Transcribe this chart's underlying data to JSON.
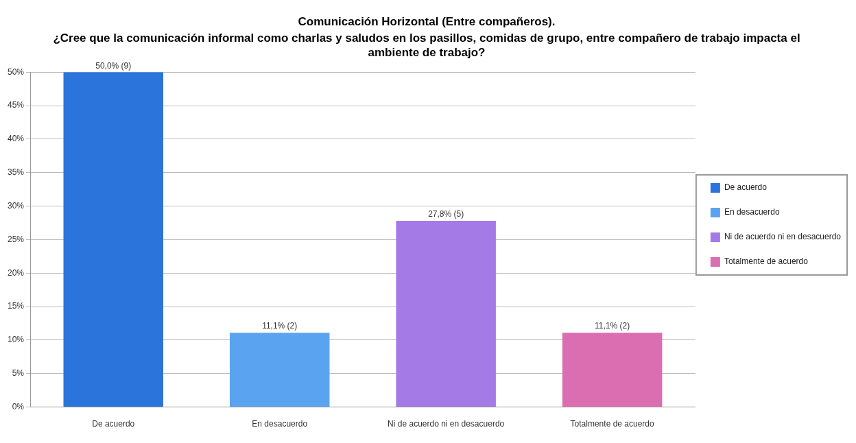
{
  "chart_data": {
    "type": "bar",
    "title": "Comunicación Horizontal (Entre compañeros).",
    "subtitle": "¿Cree que la comunicación informal como charlas y saludos en los pasillos, comidas de grupo, entre compañero de trabajo impacta el ambiente de trabajo?",
    "categories": [
      "De acuerdo",
      "En desacuerdo",
      "Ni de acuerdo ni en desacuerdo",
      "Totalmente de acuerdo"
    ],
    "series": [
      {
        "name": "De acuerdo",
        "color": "#2a74db",
        "values": [
          50,
          null,
          null,
          null
        ],
        "value_labels": [
          "50,0% (9)",
          null,
          null,
          null
        ]
      },
      {
        "name": "En desacuerdo",
        "color": "#5aa3f0",
        "values": [
          null,
          11.1,
          null,
          null
        ],
        "value_labels": [
          null,
          "11,1% (2)",
          null,
          null
        ]
      },
      {
        "name": "Ni de acuerdo ni en desacuerdo",
        "color": "#a37ae6",
        "values": [
          null,
          null,
          27.8,
          null
        ],
        "value_labels": [
          null,
          null,
          "27,8% (5)",
          null
        ]
      },
      {
        "name": "Totalmente de acuerdo",
        "color": "#db6eb0",
        "values": [
          null,
          null,
          null,
          11.1
        ],
        "value_labels": [
          null,
          null,
          null,
          "11,1% (2)"
        ]
      }
    ],
    "ylim": [
      0,
      50
    ],
    "yticks": [
      {
        "value": 0,
        "label": "0%"
      },
      {
        "value": 5,
        "label": "5%"
      },
      {
        "value": 10,
        "label": "10%"
      },
      {
        "value": 15,
        "label": "15%"
      },
      {
        "value": 20,
        "label": "20%"
      },
      {
        "value": 25,
        "label": "25%"
      },
      {
        "value": 30,
        "label": "30%"
      },
      {
        "value": 35,
        "label": "35%"
      },
      {
        "value": 40,
        "label": "40%"
      },
      {
        "value": 45,
        "label": "45%"
      },
      {
        "value": 50,
        "label": "50%"
      }
    ],
    "grid": "y",
    "legend": "right"
  }
}
